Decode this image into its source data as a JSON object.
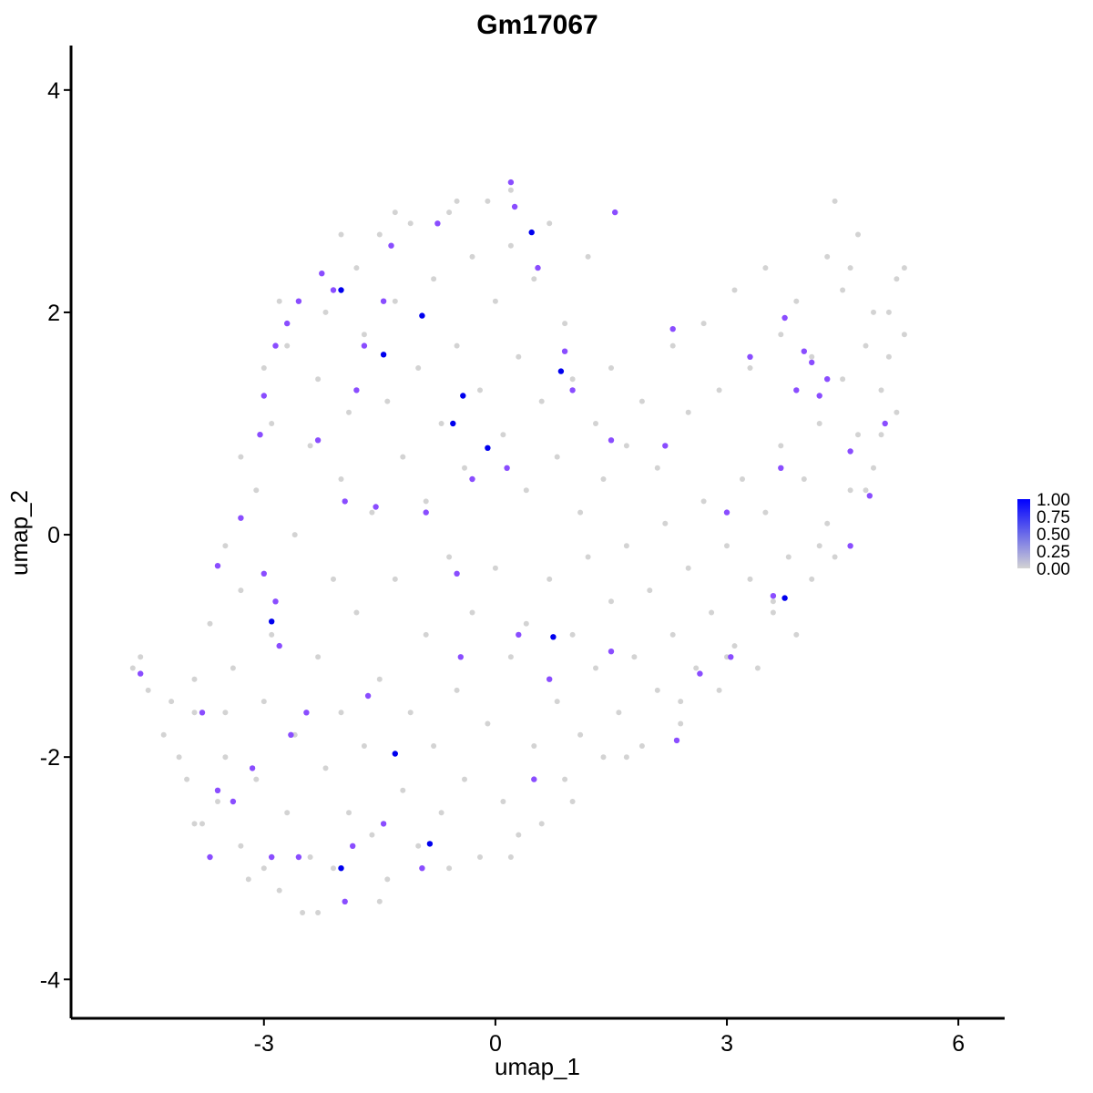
{
  "chart_data": {
    "type": "scatter",
    "title": "Gm17067",
    "xlabel": "umap_1",
    "ylabel": "umap_2",
    "xlim": [
      -5.5,
      6.6
    ],
    "ylim": [
      -4.35,
      4.4
    ],
    "x_ticks": [
      -3,
      0,
      3,
      6
    ],
    "y_ticks": [
      -4,
      -2,
      0,
      2,
      4
    ],
    "x_tick_labels": [
      "-3",
      "0",
      "3",
      "6"
    ],
    "y_tick_labels": [
      "-4",
      "-2",
      "0",
      "2",
      "4"
    ],
    "grid": false,
    "legend": {
      "placement": "right",
      "type": "colorbar",
      "labels": [
        "1.00",
        "0.75",
        "0.50",
        "0.25",
        "0.00"
      ],
      "values": [
        1.0,
        0.75,
        0.5,
        0.25,
        0.0
      ],
      "low_color": "#d3d3d3",
      "high_color": "#0000ff"
    },
    "background_points": [
      {
        "x": -4.7,
        "y": -1.2
      },
      {
        "x": -4.6,
        "y": -1.1
      },
      {
        "x": -4.5,
        "y": -1.4
      },
      {
        "x": -4.3,
        "y": -1.8
      },
      {
        "x": -4.1,
        "y": -2.0
      },
      {
        "x": -4.0,
        "y": -2.2
      },
      {
        "x": -3.9,
        "y": -1.6
      },
      {
        "x": -3.8,
        "y": -2.6
      },
      {
        "x": -3.7,
        "y": -2.9
      },
      {
        "x": -3.6,
        "y": -2.4
      },
      {
        "x": -3.5,
        "y": -2.0
      },
      {
        "x": -3.4,
        "y": -1.2
      },
      {
        "x": -3.3,
        "y": -2.8
      },
      {
        "x": -3.2,
        "y": -3.1
      },
      {
        "x": -3.1,
        "y": -2.2
      },
      {
        "x": -3.0,
        "y": -1.5
      },
      {
        "x": -2.9,
        "y": -0.9
      },
      {
        "x": -2.8,
        "y": -3.2
      },
      {
        "x": -2.7,
        "y": -2.5
      },
      {
        "x": -2.6,
        "y": -1.8
      },
      {
        "x": -2.5,
        "y": -3.4
      },
      {
        "x": -2.4,
        "y": -2.9
      },
      {
        "x": -2.3,
        "y": -1.1
      },
      {
        "x": -2.2,
        "y": -2.1
      },
      {
        "x": -2.1,
        "y": -3.0
      },
      {
        "x": -2.0,
        "y": -1.6
      },
      {
        "x": -1.9,
        "y": -2.5
      },
      {
        "x": -1.8,
        "y": -0.7
      },
      {
        "x": -1.7,
        "y": -1.9
      },
      {
        "x": -1.6,
        "y": -2.7
      },
      {
        "x": -1.5,
        "y": -1.3
      },
      {
        "x": -1.4,
        "y": -3.1
      },
      {
        "x": -1.3,
        "y": -0.4
      },
      {
        "x": -1.2,
        "y": -2.3
      },
      {
        "x": -1.1,
        "y": -1.6
      },
      {
        "x": -1.0,
        "y": -2.8
      },
      {
        "x": -0.9,
        "y": -0.9
      },
      {
        "x": -0.8,
        "y": -1.9
      },
      {
        "x": -0.7,
        "y": -2.5
      },
      {
        "x": -0.6,
        "y": -0.2
      },
      {
        "x": -0.5,
        "y": -1.4
      },
      {
        "x": -0.4,
        "y": -2.2
      },
      {
        "x": -0.3,
        "y": -0.7
      },
      {
        "x": -0.2,
        "y": -2.9
      },
      {
        "x": -0.1,
        "y": -1.7
      },
      {
        "x": 0.0,
        "y": -0.3
      },
      {
        "x": 0.1,
        "y": -2.4
      },
      {
        "x": 0.2,
        "y": -1.1
      },
      {
        "x": 0.3,
        "y": -2.7
      },
      {
        "x": 0.4,
        "y": -0.8
      },
      {
        "x": 0.5,
        "y": -1.9
      },
      {
        "x": 0.6,
        "y": -2.6
      },
      {
        "x": 0.7,
        "y": -0.4
      },
      {
        "x": 0.8,
        "y": -1.5
      },
      {
        "x": 0.9,
        "y": -2.2
      },
      {
        "x": 1.0,
        "y": -0.9
      },
      {
        "x": 1.1,
        "y": -1.8
      },
      {
        "x": 1.2,
        "y": -0.2
      },
      {
        "x": 1.3,
        "y": -1.2
      },
      {
        "x": 1.4,
        "y": -2.0
      },
      {
        "x": 1.5,
        "y": -0.6
      },
      {
        "x": 1.6,
        "y": -1.6
      },
      {
        "x": 1.7,
        "y": -0.1
      },
      {
        "x": 1.8,
        "y": -1.1
      },
      {
        "x": 1.9,
        "y": -1.9
      },
      {
        "x": 2.0,
        "y": -0.5
      },
      {
        "x": 2.1,
        "y": -1.4
      },
      {
        "x": 2.2,
        "y": 0.1
      },
      {
        "x": 2.3,
        "y": -0.9
      },
      {
        "x": 2.4,
        "y": -1.7
      },
      {
        "x": 2.5,
        "y": -0.3
      },
      {
        "x": 2.6,
        "y": -1.2
      },
      {
        "x": 2.7,
        "y": 0.3
      },
      {
        "x": 2.8,
        "y": -0.7
      },
      {
        "x": 2.9,
        "y": -1.4
      },
      {
        "x": 3.0,
        "y": -0.1
      },
      {
        "x": 3.1,
        "y": -1.0
      },
      {
        "x": 3.2,
        "y": 0.5
      },
      {
        "x": 3.3,
        "y": -0.4
      },
      {
        "x": 3.4,
        "y": -1.2
      },
      {
        "x": 3.5,
        "y": 0.2
      },
      {
        "x": 3.6,
        "y": -0.7
      },
      {
        "x": 3.7,
        "y": 0.8
      },
      {
        "x": 3.8,
        "y": -0.2
      },
      {
        "x": 3.9,
        "y": -0.9
      },
      {
        "x": 4.0,
        "y": 0.5
      },
      {
        "x": 4.1,
        "y": -0.4
      },
      {
        "x": 4.2,
        "y": 1.0
      },
      {
        "x": 4.3,
        "y": 0.1
      },
      {
        "x": 4.4,
        "y": -0.2
      },
      {
        "x": 4.5,
        "y": 1.4
      },
      {
        "x": 4.6,
        "y": 0.4
      },
      {
        "x": 4.7,
        "y": 0.9
      },
      {
        "x": 4.8,
        "y": 1.7
      },
      {
        "x": 4.9,
        "y": 0.6
      },
      {
        "x": 5.0,
        "y": 1.3
      },
      {
        "x": 5.1,
        "y": 2.0
      },
      {
        "x": 5.2,
        "y": 1.1
      },
      {
        "x": 5.3,
        "y": 2.4
      },
      {
        "x": -3.9,
        "y": -2.6
      },
      {
        "x": -3.5,
        "y": -1.6
      },
      {
        "x": -3.3,
        "y": -0.5
      },
      {
        "x": -3.1,
        "y": 0.4
      },
      {
        "x": -2.9,
        "y": 1.0
      },
      {
        "x": -2.7,
        "y": 1.7
      },
      {
        "x": -2.6,
        "y": 0.0
      },
      {
        "x": -2.4,
        "y": 0.8
      },
      {
        "x": -2.3,
        "y": 1.4
      },
      {
        "x": -2.2,
        "y": 2.0
      },
      {
        "x": -2.1,
        "y": -0.4
      },
      {
        "x": -2.0,
        "y": 0.5
      },
      {
        "x": -1.9,
        "y": 1.1
      },
      {
        "x": -1.8,
        "y": 2.4
      },
      {
        "x": -1.7,
        "y": 1.8
      },
      {
        "x": -1.6,
        "y": 0.2
      },
      {
        "x": -1.5,
        "y": 2.7
      },
      {
        "x": -1.4,
        "y": 1.2
      },
      {
        "x": -1.3,
        "y": 2.1
      },
      {
        "x": -1.2,
        "y": 0.7
      },
      {
        "x": -1.1,
        "y": 2.8
      },
      {
        "x": -1.0,
        "y": 1.5
      },
      {
        "x": -0.9,
        "y": 0.3
      },
      {
        "x": -0.8,
        "y": 2.3
      },
      {
        "x": -0.7,
        "y": 1.0
      },
      {
        "x": -0.6,
        "y": 2.9
      },
      {
        "x": -0.5,
        "y": 1.7
      },
      {
        "x": -0.4,
        "y": 0.6
      },
      {
        "x": -0.3,
        "y": 2.5
      },
      {
        "x": -0.2,
        "y": 1.3
      },
      {
        "x": -0.1,
        "y": 3.0
      },
      {
        "x": 0.0,
        "y": 2.1
      },
      {
        "x": 0.1,
        "y": 0.9
      },
      {
        "x": 0.2,
        "y": 2.6
      },
      {
        "x": 0.3,
        "y": 1.6
      },
      {
        "x": 0.4,
        "y": 0.4
      },
      {
        "x": 0.5,
        "y": 2.3
      },
      {
        "x": 0.6,
        "y": 1.2
      },
      {
        "x": 0.7,
        "y": 2.8
      },
      {
        "x": 0.8,
        "y": 0.7
      },
      {
        "x": 0.9,
        "y": 1.9
      },
      {
        "x": 1.0,
        "y": 1.4
      },
      {
        "x": 1.1,
        "y": 0.2
      },
      {
        "x": 1.2,
        "y": 2.5
      },
      {
        "x": 1.3,
        "y": 1.0
      },
      {
        "x": 1.4,
        "y": 0.5
      },
      {
        "x": 1.5,
        "y": 1.5
      },
      {
        "x": 1.7,
        "y": 0.8
      },
      {
        "x": 1.9,
        "y": 1.2
      },
      {
        "x": 2.1,
        "y": 0.6
      },
      {
        "x": 2.3,
        "y": 1.7
      },
      {
        "x": 2.5,
        "y": 1.1
      },
      {
        "x": 2.7,
        "y": 1.9
      },
      {
        "x": 2.9,
        "y": 1.3
      },
      {
        "x": 3.1,
        "y": 2.2
      },
      {
        "x": 3.3,
        "y": 1.5
      },
      {
        "x": 3.5,
        "y": 2.4
      },
      {
        "x": 3.7,
        "y": 1.8
      },
      {
        "x": 3.9,
        "y": 2.1
      },
      {
        "x": 4.1,
        "y": 1.6
      },
      {
        "x": 4.3,
        "y": 2.5
      },
      {
        "x": 4.5,
        "y": 2.2
      },
      {
        "x": 4.7,
        "y": 2.7
      },
      {
        "x": 4.9,
        "y": 2.0
      },
      {
        "x": 5.1,
        "y": 1.6
      },
      {
        "x": 5.2,
        "y": 2.3
      },
      {
        "x": 4.4,
        "y": 3.0
      },
      {
        "x": 4.6,
        "y": 2.4
      },
      {
        "x": 0.2,
        "y": 3.1
      },
      {
        "x": -0.5,
        "y": 3.0
      },
      {
        "x": -1.3,
        "y": 2.9
      },
      {
        "x": -2.0,
        "y": 2.7
      },
      {
        "x": -2.8,
        "y": 2.1
      },
      {
        "x": -3.0,
        "y": 1.5
      },
      {
        "x": -3.3,
        "y": 0.7
      },
      {
        "x": -3.5,
        "y": -0.1
      },
      {
        "x": -3.7,
        "y": -0.8
      },
      {
        "x": -3.9,
        "y": -1.3
      },
      {
        "x": -4.2,
        "y": -1.5
      },
      {
        "x": -3.0,
        "y": -3.0
      },
      {
        "x": -2.3,
        "y": -3.4
      },
      {
        "x": -1.5,
        "y": -3.3
      },
      {
        "x": -0.6,
        "y": -3.0
      },
      {
        "x": 0.2,
        "y": -2.9
      },
      {
        "x": 1.0,
        "y": -2.4
      },
      {
        "x": 1.7,
        "y": -2.0
      },
      {
        "x": 2.4,
        "y": -1.5
      },
      {
        "x": 3.0,
        "y": -1.1
      },
      {
        "x": 3.6,
        "y": -0.6
      },
      {
        "x": 4.2,
        "y": -0.1
      },
      {
        "x": 4.8,
        "y": 0.4
      },
      {
        "x": 5.0,
        "y": 0.9
      },
      {
        "x": 5.3,
        "y": 1.8
      }
    ],
    "expressing_points": [
      {
        "x": -4.6,
        "y": -1.25,
        "v": 0.55
      },
      {
        "x": -3.6,
        "y": -0.28,
        "v": 0.6
      },
      {
        "x": -3.8,
        "y": -1.6,
        "v": 0.6
      },
      {
        "x": -3.7,
        "y": -2.9,
        "v": 0.55
      },
      {
        "x": -3.6,
        "y": -2.3,
        "v": 0.55
      },
      {
        "x": -3.4,
        "y": -2.4,
        "v": 0.55
      },
      {
        "x": -3.3,
        "y": 0.15,
        "v": 0.55
      },
      {
        "x": -3.15,
        "y": -2.1,
        "v": 0.55
      },
      {
        "x": -2.9,
        "y": -0.78,
        "v": 0.95
      },
      {
        "x": -2.85,
        "y": -0.6,
        "v": 0.6
      },
      {
        "x": -2.8,
        "y": -1.0,
        "v": 0.6
      },
      {
        "x": -2.9,
        "y": -2.9,
        "v": 0.55
      },
      {
        "x": -3.0,
        "y": -0.35,
        "v": 0.55
      },
      {
        "x": -3.05,
        "y": 0.9,
        "v": 0.55
      },
      {
        "x": -3.0,
        "y": 1.25,
        "v": 0.55
      },
      {
        "x": -2.85,
        "y": 1.7,
        "v": 0.55
      },
      {
        "x": -2.7,
        "y": 1.9,
        "v": 0.55
      },
      {
        "x": -2.55,
        "y": 2.1,
        "v": 0.55
      },
      {
        "x": -2.65,
        "y": -1.8,
        "v": 0.55
      },
      {
        "x": -2.55,
        "y": -2.9,
        "v": 0.55
      },
      {
        "x": -2.45,
        "y": -1.6,
        "v": 0.55
      },
      {
        "x": -2.3,
        "y": 0.85,
        "v": 0.55
      },
      {
        "x": -2.25,
        "y": 2.35,
        "v": 0.6
      },
      {
        "x": -2.1,
        "y": 2.2,
        "v": 0.6
      },
      {
        "x": -2.0,
        "y": 2.2,
        "v": 0.95
      },
      {
        "x": -2.0,
        "y": -3.0,
        "v": 0.95
      },
      {
        "x": -1.95,
        "y": -3.3,
        "v": 0.55
      },
      {
        "x": -1.85,
        "y": -2.8,
        "v": 0.55
      },
      {
        "x": -1.95,
        "y": 0.3,
        "v": 0.55
      },
      {
        "x": -1.8,
        "y": 1.3,
        "v": 0.55
      },
      {
        "x": -1.7,
        "y": 1.7,
        "v": 0.55
      },
      {
        "x": -1.65,
        "y": -1.45,
        "v": 0.55
      },
      {
        "x": -1.55,
        "y": 0.25,
        "v": 0.55
      },
      {
        "x": -1.45,
        "y": 1.62,
        "v": 0.95
      },
      {
        "x": -1.45,
        "y": 2.1,
        "v": 0.55
      },
      {
        "x": -1.35,
        "y": 2.6,
        "v": 0.55
      },
      {
        "x": -1.3,
        "y": -1.97,
        "v": 0.9
      },
      {
        "x": -1.45,
        "y": -2.6,
        "v": 0.55
      },
      {
        "x": -0.95,
        "y": 1.97,
        "v": 0.95
      },
      {
        "x": -0.95,
        "y": -3.0,
        "v": 0.55
      },
      {
        "x": -0.85,
        "y": -2.78,
        "v": 0.95
      },
      {
        "x": -0.9,
        "y": 0.2,
        "v": 0.55
      },
      {
        "x": -0.75,
        "y": 2.8,
        "v": 0.55
      },
      {
        "x": -0.55,
        "y": 1.0,
        "v": 0.95
      },
      {
        "x": -0.42,
        "y": 1.25,
        "v": 0.95
      },
      {
        "x": -0.3,
        "y": 0.5,
        "v": 0.55
      },
      {
        "x": -0.5,
        "y": -0.35,
        "v": 0.55
      },
      {
        "x": -0.45,
        "y": -1.1,
        "v": 0.55
      },
      {
        "x": -0.1,
        "y": 0.78,
        "v": 0.95
      },
      {
        "x": 0.2,
        "y": 3.17,
        "v": 0.6
      },
      {
        "x": 0.25,
        "y": 2.95,
        "v": 0.55
      },
      {
        "x": 0.47,
        "y": 2.72,
        "v": 0.95
      },
      {
        "x": 0.55,
        "y": 2.4,
        "v": 0.55
      },
      {
        "x": 0.15,
        "y": 0.6,
        "v": 0.55
      },
      {
        "x": 0.3,
        "y": -0.9,
        "v": 0.55
      },
      {
        "x": 0.75,
        "y": -0.92,
        "v": 0.95
      },
      {
        "x": 0.85,
        "y": 1.47,
        "v": 0.95
      },
      {
        "x": 0.9,
        "y": 1.65,
        "v": 0.55
      },
      {
        "x": 0.7,
        "y": -1.3,
        "v": 0.55
      },
      {
        "x": 1.0,
        "y": 1.3,
        "v": 0.55
      },
      {
        "x": 0.5,
        "y": -2.2,
        "v": 0.55
      },
      {
        "x": 1.55,
        "y": 2.9,
        "v": 0.55
      },
      {
        "x": 1.5,
        "y": 0.85,
        "v": 0.55
      },
      {
        "x": 1.5,
        "y": -1.05,
        "v": 0.55
      },
      {
        "x": 2.2,
        "y": 0.8,
        "v": 0.55
      },
      {
        "x": 2.3,
        "y": 1.85,
        "v": 0.55
      },
      {
        "x": 2.65,
        "y": -1.25,
        "v": 0.55
      },
      {
        "x": 2.35,
        "y": -1.85,
        "v": 0.55
      },
      {
        "x": 3.0,
        "y": 0.2,
        "v": 0.55
      },
      {
        "x": 3.05,
        "y": -1.1,
        "v": 0.55
      },
      {
        "x": 3.75,
        "y": -0.57,
        "v": 0.95
      },
      {
        "x": 3.6,
        "y": -0.55,
        "v": 0.55
      },
      {
        "x": 3.3,
        "y": 1.6,
        "v": 0.55
      },
      {
        "x": 3.75,
        "y": 1.95,
        "v": 0.55
      },
      {
        "x": 3.9,
        "y": 1.3,
        "v": 0.6
      },
      {
        "x": 4.0,
        "y": 1.65,
        "v": 0.6
      },
      {
        "x": 4.1,
        "y": 1.55,
        "v": 0.55
      },
      {
        "x": 4.3,
        "y": 1.4,
        "v": 0.55
      },
      {
        "x": 3.7,
        "y": 0.6,
        "v": 0.55
      },
      {
        "x": 4.6,
        "y": 0.75,
        "v": 0.55
      },
      {
        "x": 4.6,
        "y": -0.1,
        "v": 0.55
      },
      {
        "x": 4.85,
        "y": 0.35,
        "v": 0.55
      },
      {
        "x": 5.05,
        "y": 1.0,
        "v": 0.55
      },
      {
        "x": 4.2,
        "y": 1.25,
        "v": 0.55
      }
    ]
  }
}
